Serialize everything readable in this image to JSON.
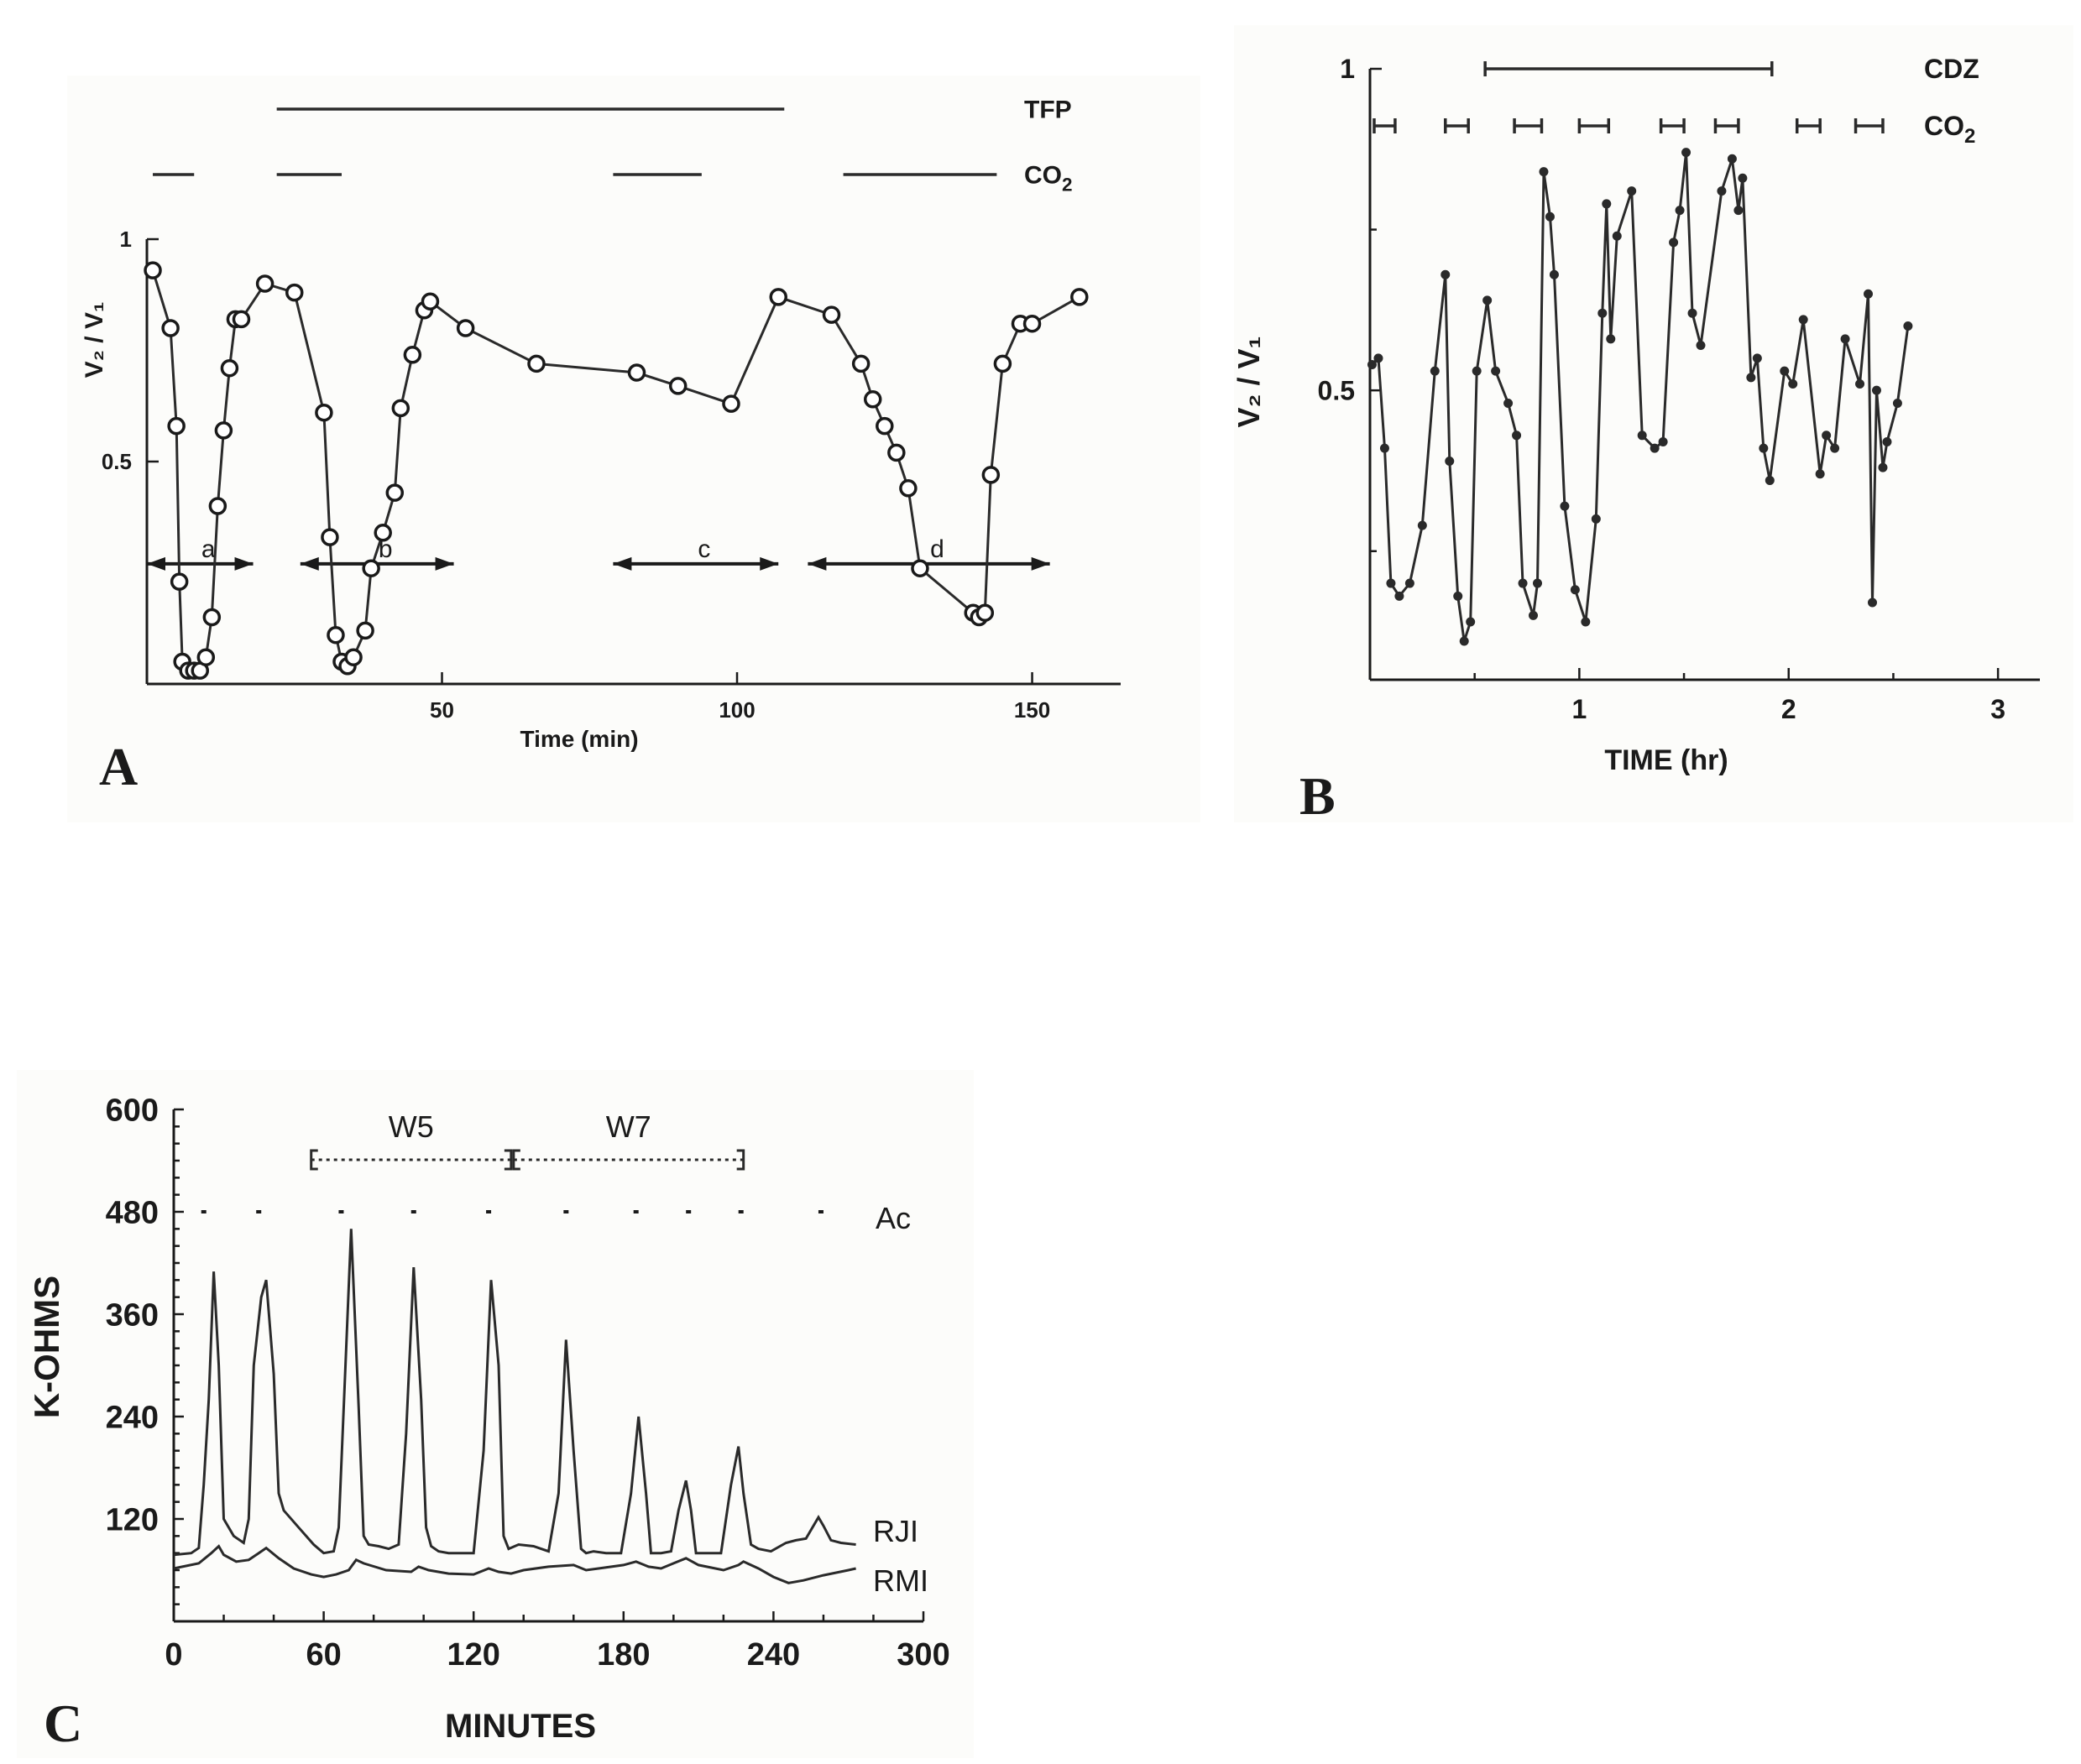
{
  "chart_data": [
    {
      "panel_label": "A",
      "type": "line",
      "xlabel": "Time (min)",
      "ylabel": "V₂ / V₁",
      "xlim": [
        0,
        165
      ],
      "ylim": [
        0,
        1
      ],
      "xticks": [
        {
          "v": 50,
          "label": "50"
        },
        {
          "v": 100,
          "label": "100"
        },
        {
          "v": 150,
          "label": "150"
        }
      ],
      "yticks": [
        {
          "v": 0.5,
          "label": "0.5"
        },
        {
          "v": 1,
          "label": "1"
        }
      ],
      "bars": [
        {
          "label": "TFP",
          "label_text": "TFP",
          "segments": [
            [
              22,
              108
            ]
          ]
        },
        {
          "label": "CO2",
          "label_text": "CO",
          "sub": "2",
          "segments": [
            [
              1,
              8
            ],
            [
              22,
              33
            ],
            [
              79,
              94
            ],
            [
              118,
              144
            ]
          ]
        }
      ],
      "intervals": [
        {
          "label": "a",
          "start": 0,
          "end": 18,
          "y": 0.27
        },
        {
          "label": "b",
          "start": 26,
          "end": 52,
          "y": 0.27
        },
        {
          "label": "c",
          "start": 79,
          "end": 107,
          "y": 0.27
        },
        {
          "label": "d",
          "start": 112,
          "end": 153,
          "y": 0.27
        }
      ],
      "series": [
        {
          "name": "V2/V1",
          "x": [
            1,
            4,
            5,
            5.5,
            6,
            7,
            8,
            9,
            10,
            11,
            12,
            13,
            14,
            15,
            16,
            20,
            25,
            30,
            31,
            32,
            33,
            34,
            35,
            37,
            38,
            40,
            42,
            43,
            45,
            47,
            48,
            54,
            66,
            83,
            90,
            99,
            107,
            116,
            121,
            123,
            125,
            127,
            129,
            131,
            140,
            141,
            142,
            143,
            145,
            148,
            150,
            158
          ],
          "y": [
            0.93,
            0.8,
            0.58,
            0.23,
            0.05,
            0.03,
            0.03,
            0.03,
            0.06,
            0.15,
            0.4,
            0.57,
            0.71,
            0.82,
            0.82,
            0.9,
            0.88,
            0.61,
            0.33,
            0.11,
            0.05,
            0.04,
            0.06,
            0.12,
            0.26,
            0.34,
            0.43,
            0.62,
            0.74,
            0.84,
            0.86,
            0.8,
            0.72,
            0.7,
            0.67,
            0.63,
            0.87,
            0.83,
            0.72,
            0.64,
            0.58,
            0.52,
            0.44,
            0.26,
            0.16,
            0.15,
            0.16,
            0.47,
            0.72,
            0.81,
            0.81,
            0.87
          ]
        }
      ]
    },
    {
      "panel_label": "B",
      "type": "line",
      "xlabel": "TIME (hr)",
      "ylabel": "V₂ / V₁",
      "xlim": [
        0,
        3.2
      ],
      "ylim": [
        0.05,
        1
      ],
      "xticks": [
        {
          "v": 1,
          "label": "1"
        },
        {
          "v": 2,
          "label": "2"
        },
        {
          "v": 3,
          "label": "3"
        }
      ],
      "yticks": [
        {
          "v": 0.5,
          "label": "0.5"
        },
        {
          "v": 1,
          "label": "1"
        }
      ],
      "bars": [
        {
          "label": "CDZ",
          "label_text": "CDZ",
          "segments": [
            [
              0.55,
              1.92
            ]
          ]
        },
        {
          "label": "CO2",
          "label_text": "CO",
          "sub": "2",
          "segments": [
            [
              0.02,
              0.12
            ],
            [
              0.36,
              0.47
            ],
            [
              0.69,
              0.82
            ],
            [
              1.0,
              1.14
            ],
            [
              1.39,
              1.5
            ],
            [
              1.65,
              1.76
            ],
            [
              2.04,
              2.15
            ],
            [
              2.32,
              2.45
            ]
          ]
        }
      ],
      "series": [
        {
          "name": "V2/V1",
          "x": [
            0.01,
            0.04,
            0.07,
            0.1,
            0.14,
            0.19,
            0.25,
            0.31,
            0.36,
            0.38,
            0.42,
            0.45,
            0.48,
            0.51,
            0.56,
            0.6,
            0.66,
            0.7,
            0.73,
            0.78,
            0.8,
            0.83,
            0.86,
            0.88,
            0.93,
            0.98,
            1.03,
            1.08,
            1.11,
            1.13,
            1.15,
            1.18,
            1.25,
            1.3,
            1.36,
            1.4,
            1.45,
            1.48,
            1.51,
            1.54,
            1.58,
            1.68,
            1.73,
            1.76,
            1.78,
            1.82,
            1.85,
            1.88,
            1.91,
            1.98,
            2.02,
            2.07,
            2.15,
            2.18,
            2.22,
            2.27,
            2.34,
            2.38,
            2.4,
            2.42,
            2.45,
            2.47,
            2.52,
            2.57
          ],
          "y": [
            0.54,
            0.55,
            0.41,
            0.2,
            0.18,
            0.2,
            0.29,
            0.53,
            0.68,
            0.39,
            0.18,
            0.11,
            0.14,
            0.53,
            0.64,
            0.53,
            0.48,
            0.43,
            0.2,
            0.15,
            0.2,
            0.84,
            0.77,
            0.68,
            0.32,
            0.19,
            0.14,
            0.3,
            0.62,
            0.79,
            0.58,
            0.74,
            0.81,
            0.43,
            0.41,
            0.42,
            0.73,
            0.78,
            0.87,
            0.62,
            0.57,
            0.81,
            0.86,
            0.78,
            0.83,
            0.52,
            0.55,
            0.41,
            0.36,
            0.53,
            0.51,
            0.61,
            0.37,
            0.43,
            0.41,
            0.58,
            0.51,
            0.65,
            0.17,
            0.5,
            0.38,
            0.42,
            0.48,
            0.6
          ]
        }
      ]
    },
    {
      "panel_label": "C",
      "type": "line",
      "xlabel": "MINUTES",
      "ylabel": "K-OHMS",
      "xlim": [
        0,
        300
      ],
      "ylim": [
        0,
        600
      ],
      "xticks": [
        {
          "v": 0,
          "label": "0"
        },
        {
          "v": 60,
          "label": "60"
        },
        {
          "v": 120,
          "label": "120"
        },
        {
          "v": 180,
          "label": "180"
        },
        {
          "v": 240,
          "label": "240"
        },
        {
          "v": 300,
          "label": "300"
        }
      ],
      "yticks": [
        {
          "v": 120,
          "label": "120"
        },
        {
          "v": 240,
          "label": "240"
        },
        {
          "v": 360,
          "label": "360"
        },
        {
          "v": 480,
          "label": "480"
        },
        {
          "v": 600,
          "label": "600"
        }
      ],
      "brackets": [
        {
          "label": "W5",
          "start": 55,
          "end": 135
        },
        {
          "label": "W7",
          "start": 136,
          "end": 228
        }
      ],
      "ac_label": "Ac",
      "ac_marks": [
        12,
        34,
        67,
        96,
        126,
        157,
        185,
        206,
        227,
        259
      ],
      "series": [
        {
          "name": "RJI",
          "x": [
            0,
            7,
            10,
            12,
            14,
            16,
            18,
            20,
            24,
            28,
            30,
            32,
            35,
            37,
            40,
            42,
            44,
            50,
            56,
            60,
            64,
            66,
            69,
            71,
            74,
            76,
            78,
            82,
            86,
            90,
            93,
            96,
            99,
            101,
            103,
            106,
            110,
            116,
            120,
            124,
            127,
            130,
            132,
            134,
            138,
            144,
            150,
            154,
            157,
            160,
            163,
            165,
            168,
            173,
            179,
            183,
            186,
            189,
            191,
            195,
            199,
            202,
            205,
            207,
            209,
            213,
            219,
            223,
            226,
            228,
            231,
            234,
            239,
            245,
            249,
            253,
            258,
            260,
            263,
            267,
            273
          ],
          "y": [
            78,
            80,
            86,
            160,
            260,
            410,
            300,
            120,
            100,
            92,
            120,
            300,
            380,
            400,
            290,
            150,
            130,
            110,
            90,
            80,
            82,
            110,
            320,
            460,
            250,
            100,
            90,
            88,
            85,
            90,
            220,
            415,
            260,
            110,
            88,
            82,
            80,
            80,
            80,
            200,
            400,
            300,
            100,
            85,
            90,
            88,
            82,
            150,
            330,
            200,
            85,
            80,
            82,
            80,
            80,
            150,
            240,
            150,
            80,
            80,
            82,
            130,
            165,
            130,
            80,
            80,
            80,
            160,
            205,
            150,
            90,
            85,
            82,
            92,
            95,
            97,
            122,
            112,
            95,
            92,
            90
          ]
        },
        {
          "name": "RMI",
          "x": [
            0,
            10,
            15,
            18,
            20,
            25,
            30,
            34,
            37,
            42,
            48,
            55,
            60,
            65,
            70,
            73,
            76,
            85,
            95,
            98,
            102,
            110,
            120,
            126,
            130,
            135,
            140,
            150,
            160,
            165,
            170,
            180,
            185,
            190,
            195,
            200,
            205,
            210,
            220,
            226,
            228,
            234,
            240,
            246,
            252,
            260,
            270,
            273
          ],
          "y": [
            62,
            68,
            80,
            88,
            78,
            70,
            72,
            80,
            86,
            74,
            62,
            55,
            52,
            55,
            60,
            72,
            68,
            60,
            58,
            64,
            60,
            56,
            55,
            62,
            58,
            56,
            60,
            64,
            66,
            60,
            62,
            66,
            70,
            64,
            62,
            68,
            74,
            66,
            60,
            66,
            70,
            62,
            52,
            45,
            48,
            54,
            60,
            62
          ]
        }
      ]
    }
  ]
}
